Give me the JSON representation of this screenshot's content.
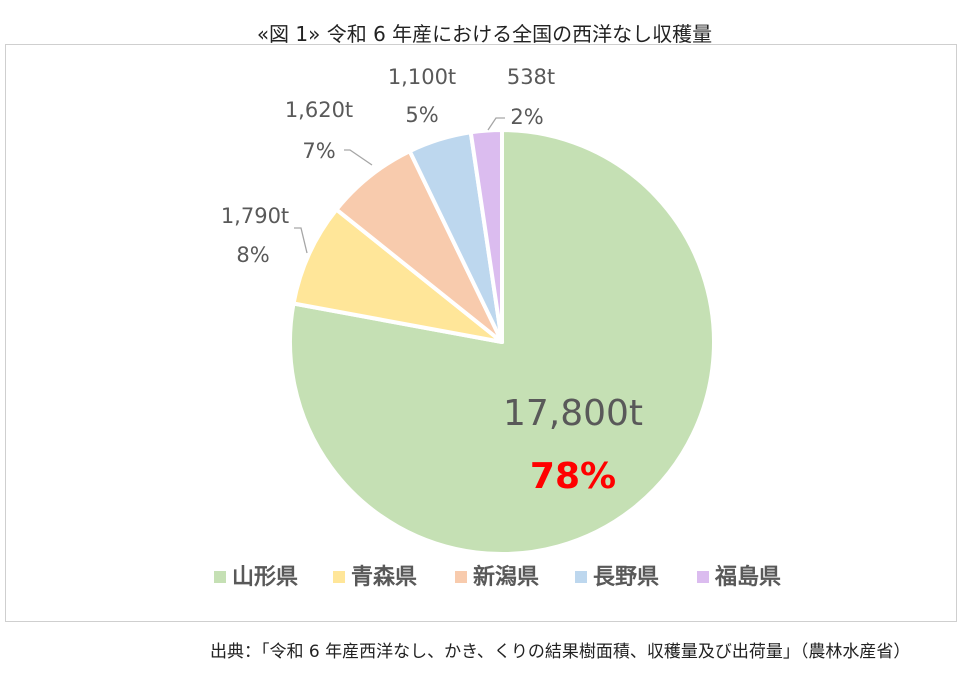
{
  "figure_title": "«図 1» 令和 6 年産における全国の西洋なし収穫量",
  "source": "出典：「令和 6 年産西洋なし、かき、くりの結果樹面積、収穫量及び出荷量」（農林水産省）",
  "chart_data": {
    "type": "pie",
    "categories": [
      "山形県",
      "青森県",
      "新潟県",
      "長野県",
      "福島県"
    ],
    "values": [
      17800,
      1790,
      1620,
      1100,
      538
    ],
    "value_labels": [
      "17,800t",
      "1,790t",
      "1,620t",
      "1,100t",
      "538t"
    ],
    "percent_labels": [
      "78%",
      "8%",
      "7%",
      "5%",
      "2%"
    ],
    "colors": [
      "#c5e0b4",
      "#ffe699",
      "#f8cbad",
      "#bdd7ee",
      "#dbbcef"
    ],
    "highlight_color": "#ff0000",
    "legend_position": "bottom",
    "start_angle_deg": 0,
    "direction": "clockwise"
  }
}
